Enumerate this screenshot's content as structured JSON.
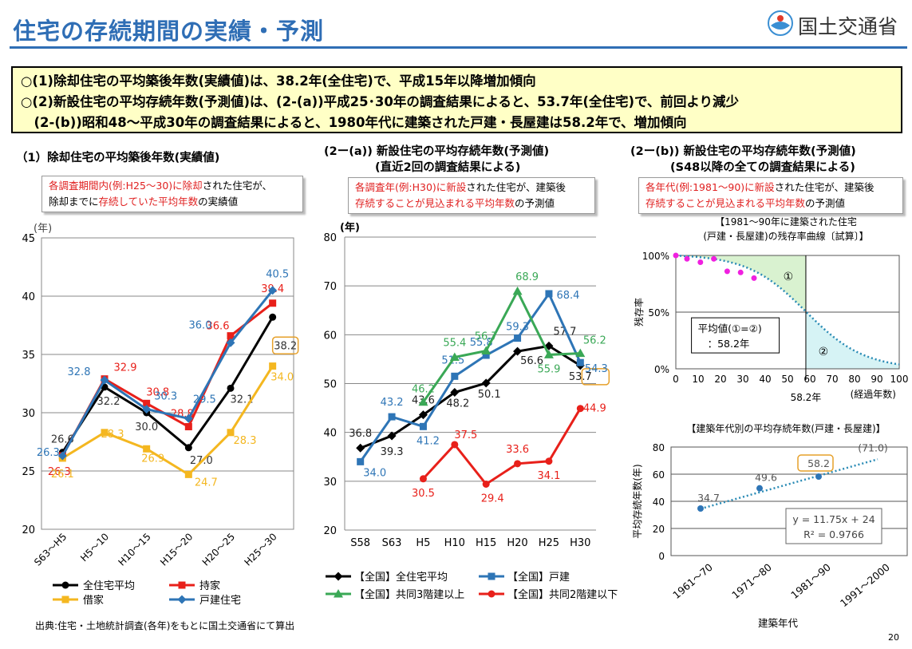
{
  "header": {
    "title": "住宅の存続期間の実績・予測",
    "ministry": "国土交通省"
  },
  "summary": [
    "○(1)除却住宅の平均築後年数(実績値)は、38.2年(全住宅)で、平成15年以降増加傾向",
    "○(2)新設住宅の平均存続年数(予測値)は、(2-(a))平成25･30年の調査結果によると、53.7年(全住宅)で、前回より減少",
    "　(2-(b))昭和48～平成30年の調査結果によると、1980年代に建築された戸建・長屋建は58.2年で、増加傾向"
  ],
  "section1": {
    "heading": "（1）除却住宅の平均築後年数(実績値)",
    "note_parts": [
      {
        "t": "各調査期間内(例:H25～30)に除却",
        "red": true
      },
      {
        "t": "された住宅が、",
        "red": false
      },
      {
        "t": "除却までに",
        "red": false
      },
      {
        "t": "存続していた平均年数",
        "red": true
      },
      {
        "t": "の実績値",
        "red": false
      }
    ]
  },
  "section2a": {
    "heading1": "(2ー(a)) 新設住宅の平均存続年数(予測値)",
    "heading2": "(直近2回の調査結果による)",
    "note_parts": [
      {
        "t": "各調査年(例:H30)に新設",
        "red": true
      },
      {
        "t": "された住宅が、建築後",
        "red": false
      },
      {
        "t": "存続することが見込まれる平均年数",
        "red": true
      },
      {
        "t": "の予測値",
        "red": false
      }
    ]
  },
  "section2b": {
    "heading1": "(2ー(b)) 新設住宅の平均存続年数(予測値)",
    "heading2": "(S48以降の全ての調査結果による)",
    "note_parts": [
      {
        "t": "各年代(例:1981～90)に新設",
        "red": true
      },
      {
        "t": "された住宅が、建築後",
        "red": false
      },
      {
        "t": "存続することが見込まれる平均年数",
        "red": true
      },
      {
        "t": "の予測値",
        "red": false
      }
    ]
  },
  "source": "出典:住宅・土地統計調査(各年)をもとに国土交通省にて算出",
  "page_number": "20",
  "chart_data": [
    {
      "id": "chart1",
      "type": "line",
      "ylabel": "(年)",
      "ylim": [
        20,
        45
      ],
      "yticks": [
        20,
        25,
        30,
        35,
        40,
        45
      ],
      "categories": [
        "S63～H5",
        "H5～10",
        "H10～15",
        "H15～20",
        "H20～25",
        "H25～30"
      ],
      "series": [
        {
          "name": "全住宅平均",
          "color": "#000000",
          "marker": "circle",
          "values": [
            26.6,
            32.2,
            30.0,
            27.0,
            32.1,
            38.2
          ]
        },
        {
          "name": "持家",
          "color": "#e8201a",
          "marker": "square",
          "values": [
            26.3,
            32.9,
            30.8,
            28.8,
            36.6,
            39.4
          ]
        },
        {
          "name": "借家",
          "color": "#f4b720",
          "marker": "square",
          "values": [
            26.1,
            28.3,
            26.9,
            24.7,
            28.3,
            34.0
          ]
        },
        {
          "name": "戸建住宅",
          "color": "#2e75b6",
          "marker": "diamond",
          "values": [
            26.3,
            32.8,
            30.3,
            29.5,
            36.0,
            40.5
          ]
        }
      ],
      "highlight": "38.2"
    },
    {
      "id": "chart2",
      "type": "line",
      "ylabel": "(年)",
      "ylim": [
        20,
        80
      ],
      "yticks": [
        20,
        30,
        40,
        50,
        60,
        70,
        80
      ],
      "categories": [
        "S58",
        "S63",
        "H5",
        "H10",
        "H15",
        "H20",
        "H25",
        "H30"
      ],
      "series": [
        {
          "name": "【全国】全住宅平均",
          "color": "#000000",
          "marker": "diamond",
          "values": [
            36.8,
            39.3,
            43.6,
            48.2,
            50.1,
            56.6,
            57.7,
            53.7
          ]
        },
        {
          "name": "【全国】戸建",
          "color": "#2e75b6",
          "marker": "square",
          "values": [
            34.0,
            43.2,
            41.2,
            51.5,
            55.8,
            59.3,
            68.4,
            54.3
          ]
        },
        {
          "name": "【全国】共同3階建以上",
          "color": "#3aa856",
          "marker": "triangle",
          "values": [
            null,
            null,
            46.2,
            55.4,
            56.7,
            68.9,
            55.9,
            56.2
          ]
        },
        {
          "name": "【全国】共同2階建以下",
          "color": "#e8201a",
          "marker": "circle",
          "values": [
            null,
            null,
            30.5,
            37.5,
            29.4,
            33.6,
            34.1,
            44.9
          ]
        }
      ],
      "highlight": "53.7"
    },
    {
      "id": "chart3",
      "type": "scatter",
      "title": "【1981～90年に建築された住宅(戸建・長屋建)の残存率曲線〔試算〕】",
      "title_line1": "【1981～90年に建築された住宅",
      "title_line2": "(戸建・長屋建)の残存率曲線〔試算〕】",
      "xlabel": "(経過年数)",
      "ylabel": "残存率",
      "xlim": [
        0,
        100
      ],
      "ylim": [
        0,
        100
      ],
      "xticks": [
        0,
        10,
        20,
        30,
        40,
        50,
        60,
        70,
        80,
        90,
        100
      ],
      "yticks": [
        "0%",
        "50%",
        "100%"
      ],
      "observed_points": {
        "x": [
          0,
          5,
          11,
          17,
          23,
          29,
          35
        ],
        "y": [
          100,
          97,
          94,
          97,
          86,
          85,
          80
        ]
      },
      "mean_life": 58.2,
      "mean_life_label": "58.2年",
      "area_labels": [
        "①",
        "②"
      ],
      "annotation_line1": "平均値(①=②)",
      "annotation_line2": "：58.2年"
    },
    {
      "id": "chart4",
      "type": "scatter",
      "title": "【建築年代別の平均存続年数(戸建・長屋建)】",
      "xlabel": "建築年代",
      "ylabel": "平均存続年数(年)",
      "ylim": [
        0,
        80
      ],
      "yticks": [
        0,
        20,
        40,
        60,
        80
      ],
      "categories": [
        "1961～70",
        "1971～80",
        "1981～90",
        "1991～2000"
      ],
      "values": [
        34.7,
        49.6,
        58.2,
        71.0
      ],
      "value_labels": [
        "34.7",
        "49.6",
        "58.2",
        "(71.0)"
      ],
      "trend_equation": "y = 11.75x + 24",
      "r_squared": "R² = 0.9766",
      "highlight": "58.2"
    }
  ]
}
